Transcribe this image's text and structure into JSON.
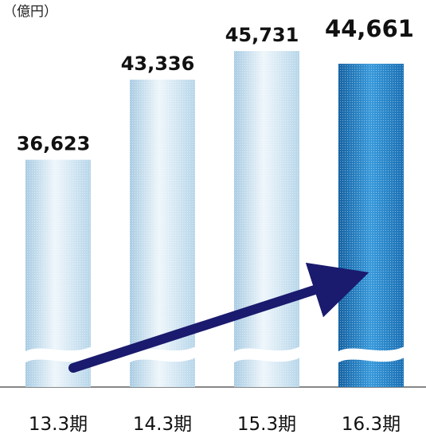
{
  "chart_data": {
    "type": "bar",
    "unit_label": "（億円）",
    "categories": [
      "13.3期",
      "14.3期",
      "15.3期",
      "16.3期"
    ],
    "values": [
      36623,
      43336,
      45731,
      44661
    ],
    "value_labels": [
      "36,623",
      "43,336",
      "45,731",
      "44,661"
    ],
    "highlight_index": 3,
    "axis_break": true,
    "trend_arrow": true,
    "colors": {
      "bar_light": "#d9ebf5",
      "bar_light_dark": "#a9cce3",
      "bar_highlight": "#2f8fd0",
      "bar_highlight_dark": "#1663a3",
      "arrow": "#1a1a6e",
      "baseline": "#888888"
    }
  }
}
